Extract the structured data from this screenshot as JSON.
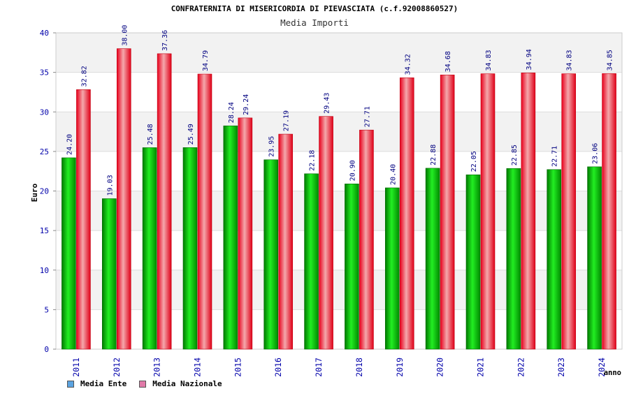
{
  "colors": {
    "ente": "#00b000",
    "nazionale": "#ee1c24",
    "axis_text": "#0000aa",
    "legend_ente": "#5ba3e0",
    "legend_nazionale": "#e07aa8"
  },
  "chart_data": {
    "type": "bar",
    "title": "CONFRATERNITA DI MISERICORDIA DI PIEVASCIATA (c.f.92008860527)",
    "subtitle": "Media Importi",
    "xlabel": "anno",
    "ylabel": "Euro",
    "ylim": [
      0,
      40
    ],
    "yticks": [
      0,
      5,
      10,
      15,
      20,
      25,
      30,
      35,
      40
    ],
    "grid": true,
    "legend_position": "bottom-left",
    "categories": [
      "2011",
      "2012",
      "2013",
      "2014",
      "2015",
      "2016",
      "2017",
      "2018",
      "2019",
      "2020",
      "2021",
      "2022",
      "2023",
      "2024"
    ],
    "series": [
      {
        "name": "Media Ente",
        "values": [
          24.2,
          19.03,
          25.48,
          25.49,
          28.24,
          23.95,
          22.18,
          20.9,
          20.4,
          22.88,
          22.05,
          22.85,
          22.71,
          23.06
        ],
        "labels": [
          "24.20",
          "19.03",
          "25.48",
          "25.49",
          "28.24",
          "23.95",
          "22.18",
          "20.90",
          "20.40",
          "22.88",
          "22.05",
          "22.85",
          "22.71",
          "23.06"
        ]
      },
      {
        "name": "Media Nazionale",
        "values": [
          32.82,
          38.0,
          37.36,
          34.79,
          29.24,
          27.19,
          29.43,
          27.71,
          34.32,
          34.68,
          34.83,
          34.94,
          34.83,
          34.85
        ],
        "labels": [
          "32.82",
          "38.00",
          "37.36",
          "34.79",
          "29.24",
          "27.19",
          "29.43",
          "27.71",
          "34.32",
          "34.68",
          "34.83",
          "34.94",
          "34.83",
          "34.85"
        ]
      }
    ]
  },
  "legend": {
    "ente_label": "Media Ente",
    "nazionale_label": "Media Nazionale"
  }
}
